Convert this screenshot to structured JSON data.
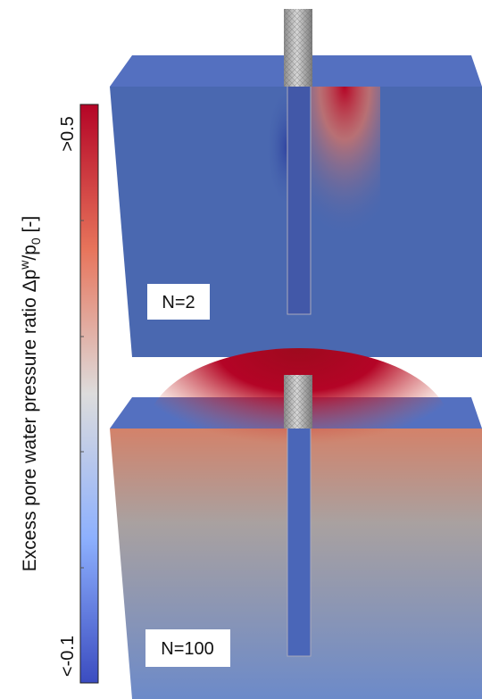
{
  "colorbar": {
    "label_prefix": "Excess pore water pressure ratio Δp",
    "label_sup": "w",
    "label_mid": "/p",
    "label_sub": "0",
    "label_suffix": " [-]",
    "max_label": ">0.5",
    "min_label": "<-0.1"
  },
  "panels": [
    {
      "label": "N=2"
    },
    {
      "label": "N=100"
    }
  ]
}
